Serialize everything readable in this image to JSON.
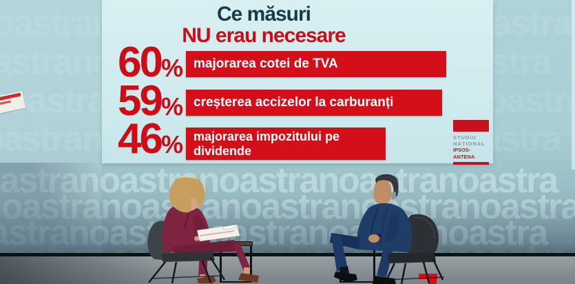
{
  "poll": {
    "title_line1": "Ce măsuri",
    "title_line2": "NU erau necesare",
    "percent_sign": "%"
  },
  "chart_data": {
    "type": "bar",
    "orientation": "horizontal",
    "title": "Ce măsuri NU erau necesare",
    "categories": [
      "majorarea cotei de TVA",
      "creșterea accizelor la carburanți",
      "majorarea impozitului pe dividende"
    ],
    "values": [
      60,
      59,
      46
    ],
    "unit": "%",
    "value_labels": [
      "60%",
      "59%",
      "46%"
    ],
    "xlim": [
      0,
      90
    ],
    "legend": "none",
    "grid": false,
    "bar_color": "#d40f1a",
    "value_label_color": "#ce0b17",
    "source": "STUDIU NAȚIONAL IPSOS-ANTENA"
  },
  "source_logo": {
    "line1": "STUDIU",
    "line2": "NAȚIONAL",
    "line3": "IPSOS-ANTENA"
  },
  "backdrop": {
    "watermark_word": "noastra",
    "row_text": "noastranoastranoastranoastranoastra"
  },
  "colors": {
    "bar_red": "#d40f1a",
    "title_dark": "#173c49",
    "title_red": "#ce0b17",
    "screen_bg": "#d2ebee",
    "studio_teal": "#a9ced3",
    "floor_gray": "#878f94",
    "logo_red": "#c8101e",
    "logo_gray": "#8a9499",
    "decal_red": "#e30613"
  }
}
